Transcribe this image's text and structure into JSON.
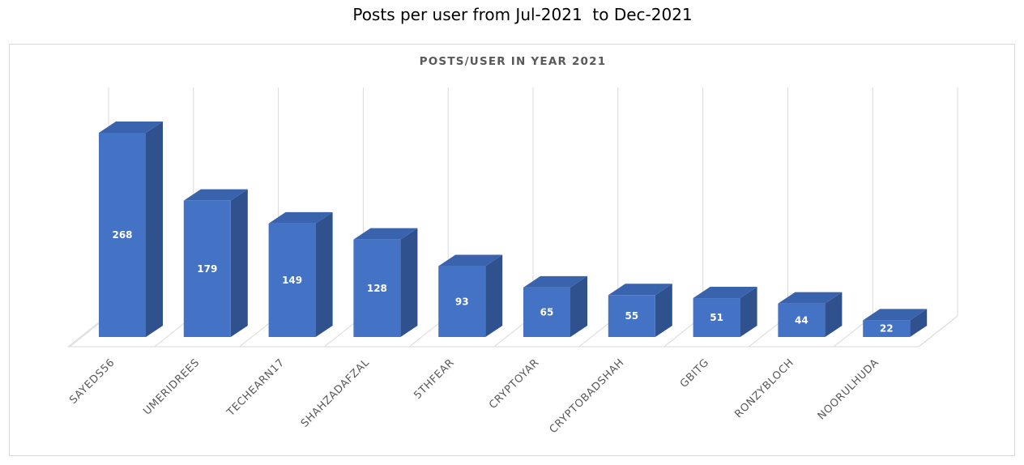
{
  "page": {
    "title": "Posts per user from Jul-2021  to Dec-2021"
  },
  "chart_data": {
    "type": "bar",
    "title": "POSTS/USER IN YEAR 2021",
    "xlabel": "",
    "ylabel": "",
    "categories": [
      "SAYEDS56",
      "UMERIDREES",
      "TECHEARN17",
      "SHAHZADAFZAL",
      "5THFEAR",
      "CRYPTOYAR",
      "CRYPTOBADSHAH",
      "GBITG",
      "RONZYBLOCH",
      "NOORULHUDA"
    ],
    "series": [
      {
        "values": [
          268,
          179,
          149,
          128,
          93,
          65,
          55,
          51,
          44,
          22
        ]
      }
    ],
    "data_labels": true,
    "ylim": [
      0,
      300
    ],
    "grid": "vertical",
    "legend": "none",
    "style": "3d-column",
    "colors": {
      "front": "#4472C4",
      "side": "#2F528F",
      "top": "#3A63AD",
      "grid": "#d9d9d9"
    }
  }
}
